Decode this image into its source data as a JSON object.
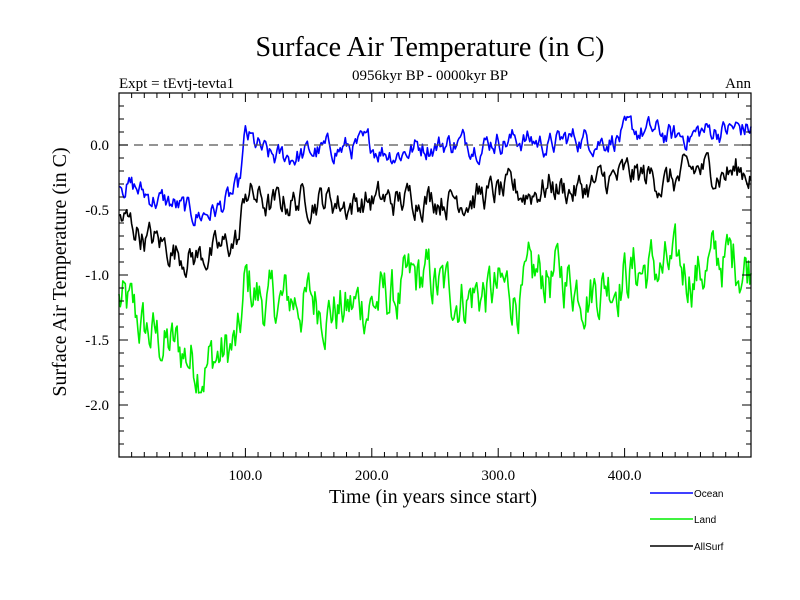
{
  "chart_data": {
    "type": "line",
    "title": "Surface Air Temperature (in C)",
    "subtitle": "0956kyr BP - 0000kyr BP",
    "experiment": "Expt = tEvtj-tevta1",
    "season": "Ann",
    "xlabel": "Time (in years since start)",
    "ylabel": "Surface Air Temperature (in C)",
    "xlim": [
      0,
      500
    ],
    "ylim": [
      -2.4,
      0.4
    ],
    "xticks": [
      100,
      200,
      300,
      400
    ],
    "xtick_labels": [
      "100.0",
      "200.0",
      "300.0",
      "400.0"
    ],
    "yticks": [
      0.0,
      -0.5,
      -1.0,
      -1.5,
      -2.0
    ],
    "ytick_labels": [
      "0.0",
      "-0.5",
      "-1.0",
      "-1.5",
      "-2.0"
    ],
    "reference_line": 0.0,
    "series": [
      {
        "name": "Ocean",
        "color": "#0000ff",
        "x": [
          0,
          20,
          40,
          60,
          80,
          95,
          100,
          120,
          140,
          160,
          180,
          200,
          220,
          240,
          260,
          280,
          300,
          320,
          340,
          360,
          380,
          400,
          420,
          440,
          460,
          480,
          500
        ],
        "values": [
          -0.25,
          -0.38,
          -0.45,
          -0.55,
          -0.48,
          -0.35,
          0.05,
          -0.12,
          -0.08,
          -0.05,
          -0.02,
          -0.02,
          -0.05,
          0.0,
          0.02,
          0.02,
          0.05,
          0.05,
          0.0,
          0.05,
          0.05,
          0.08,
          0.1,
          0.05,
          0.1,
          0.12,
          0.12
        ]
      },
      {
        "name": "Land",
        "color": "#00ee00",
        "x": [
          0,
          20,
          40,
          60,
          80,
          95,
          100,
          120,
          140,
          160,
          180,
          200,
          220,
          240,
          260,
          280,
          300,
          320,
          340,
          360,
          380,
          400,
          420,
          440,
          460,
          480,
          500
        ],
        "values": [
          -1.2,
          -1.45,
          -1.55,
          -1.65,
          -1.62,
          -1.55,
          -1.1,
          -1.25,
          -1.2,
          -1.2,
          -1.28,
          -1.2,
          -1.18,
          -1.05,
          -1.15,
          -1.12,
          -1.15,
          -1.15,
          -1.0,
          -1.05,
          -1.05,
          -0.95,
          -0.95,
          -1.0,
          -0.95,
          -0.88,
          -0.9
        ]
      },
      {
        "name": "AllSurf",
        "color": "#000000",
        "x": [
          0,
          20,
          40,
          60,
          80,
          95,
          100,
          120,
          140,
          160,
          180,
          200,
          220,
          240,
          260,
          280,
          300,
          320,
          340,
          360,
          380,
          400,
          420,
          440,
          460,
          480,
          500
        ],
        "values": [
          -0.55,
          -0.7,
          -0.8,
          -0.85,
          -0.82,
          -0.72,
          -0.35,
          -0.48,
          -0.42,
          -0.4,
          -0.45,
          -0.42,
          -0.45,
          -0.38,
          -0.4,
          -0.38,
          -0.38,
          -0.38,
          -0.3,
          -0.35,
          -0.3,
          -0.25,
          -0.25,
          -0.28,
          -0.2,
          -0.2,
          -0.2
        ]
      }
    ],
    "legend": [
      "Ocean",
      "Land",
      "AllSurf"
    ],
    "legend_position": "bottom-right"
  }
}
